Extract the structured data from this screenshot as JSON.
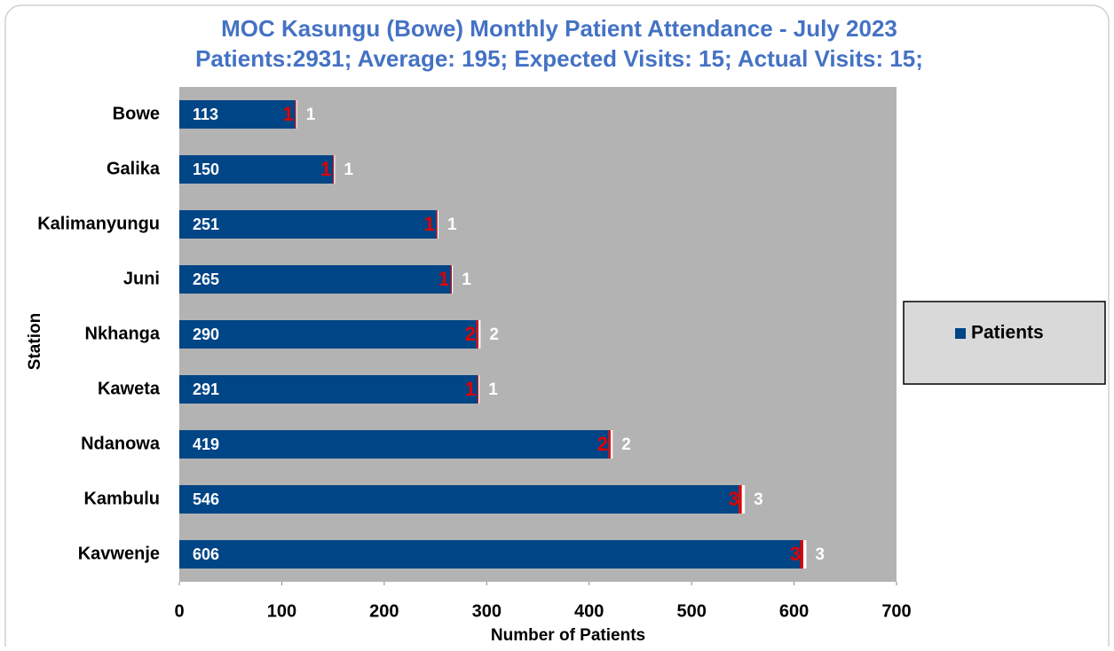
{
  "chart_data": {
    "type": "stacked_barh",
    "title": "MOC Kasungu (Bowe) Monthly Patient Attendance - July 2023",
    "subtitle": "Patients:2931; Average: 195; Expected Visits: 15; Actual Visits: 15;",
    "xlabel": "Number of Patients",
    "ylabel": "Station",
    "categories": [
      "Bowe",
      "Galika",
      "Kalimanyungu",
      "Juni",
      "Nkhanga",
      "Kaweta",
      "Ndanowa",
      "Kambulu",
      "Kavwenje"
    ],
    "series": [
      {
        "name": "Patients",
        "color": "#004586",
        "label_color": "#ffffff",
        "values": [
          113,
          150,
          251,
          265,
          290,
          291,
          419,
          546,
          606
        ]
      },
      {
        "color": "#e00000",
        "label_color": "#e00000",
        "values": [
          1,
          1,
          1,
          1,
          2,
          1,
          2,
          3,
          3
        ]
      },
      {
        "color": "#ffffff",
        "label_color": "#ffffff",
        "values": [
          1,
          1,
          1,
          1,
          2,
          1,
          2,
          3,
          3
        ]
      }
    ],
    "xlim": [
      0,
      700
    ],
    "xticks": [
      0,
      100,
      200,
      300,
      400,
      500,
      600,
      700
    ],
    "legend": "right",
    "plot_background": "#b3b3b3"
  }
}
